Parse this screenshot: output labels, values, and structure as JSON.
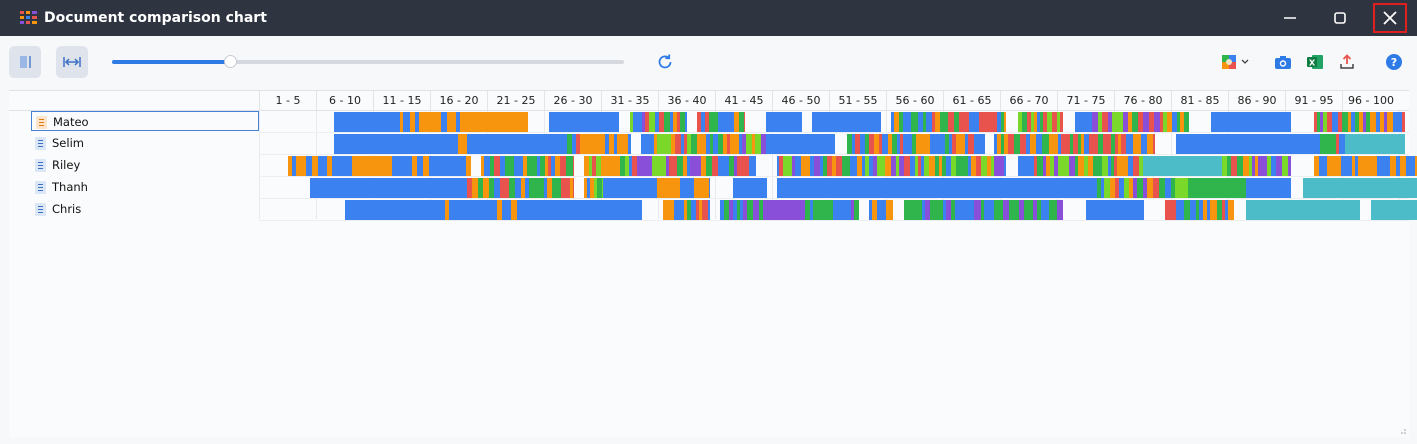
{
  "window": {
    "title": "Document comparison chart",
    "icon": "grid-chart-icon"
  },
  "toolbar": {
    "buttons": [
      "fit-page-icon",
      "fit-width-icon",
      "refresh-icon",
      "color-palette-icon",
      "camera-icon",
      "excel-icon",
      "export-icon",
      "help-icon"
    ],
    "zoom_level": 0.23
  },
  "colors": {
    "blue": "#3b82f0",
    "orange": "#f7950f",
    "red": "#e8534d",
    "green": "#2fb54c",
    "purple": "#8a4fd8",
    "teal": "#4cbcc8",
    "lime": "#7ad82a",
    "accent": "#2f7be6",
    "close_highlight": "#e02020"
  },
  "chart_data": {
    "type": "table",
    "columns": [
      "1 - 5",
      "6 - 10",
      "11 - 15",
      "16 - 20",
      "21 - 25",
      "26 - 30",
      "31 - 35",
      "36 - 40",
      "41 - 45",
      "46 - 50",
      "51 - 55",
      "56 - 60",
      "61 - 65",
      "66 - 70",
      "71 - 75",
      "76 - 80",
      "81 - 85",
      "86 - 90",
      "91 - 95",
      "96 - 100"
    ],
    "rows": [
      {
        "name": "Mateo",
        "icon": "orange",
        "selected": true
      },
      {
        "name": "Selim",
        "icon": "blue",
        "selected": false
      },
      {
        "name": "Riley",
        "icon": "blue",
        "selected": false
      },
      {
        "name": "Thanh",
        "icon": "blue",
        "selected": false
      },
      {
        "name": "Chris",
        "icon": "blue",
        "selected": false
      }
    ]
  }
}
